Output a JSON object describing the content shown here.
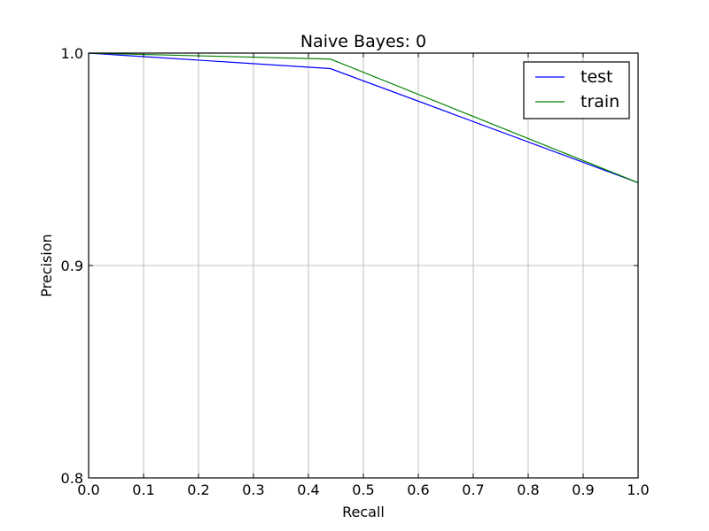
{
  "chart_data": {
    "type": "line",
    "title": "Naive Bayes: 0",
    "xlabel": "Recall",
    "ylabel": "Precision",
    "xlim": [
      0.0,
      1.0
    ],
    "ylim": [
      0.8,
      1.0
    ],
    "xticks": [
      0.0,
      0.1,
      0.2,
      0.3,
      0.4,
      0.5,
      0.6,
      0.7,
      0.8,
      0.9,
      1.0
    ],
    "xtick_labels": [
      "0.0",
      "0.1",
      "0.2",
      "0.3",
      "0.4",
      "0.5",
      "0.6",
      "0.7",
      "0.8",
      "0.9",
      "1.0"
    ],
    "yticks": [
      0.8,
      0.9,
      1.0
    ],
    "ytick_labels": [
      "0.8",
      "0.9",
      "1.0"
    ],
    "grid": true,
    "legend_position": "top-right",
    "series": [
      {
        "name": "test",
        "color": "#0000ff",
        "x": [
          0.0,
          0.44,
          1.0
        ],
        "y": [
          1.0,
          0.9927,
          0.939
        ]
      },
      {
        "name": "train",
        "color": "#008000",
        "x": [
          0.0,
          0.44,
          1.0
        ],
        "y": [
          1.0,
          0.9972,
          0.939
        ]
      }
    ]
  }
}
